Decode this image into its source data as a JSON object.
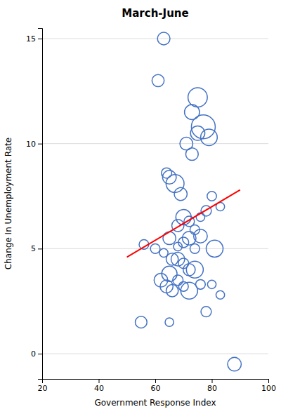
{
  "chart_data": {
    "type": "scatter",
    "title": "March-June",
    "xlabel": "Government Response Index",
    "ylabel": "Change In Unemployment Rate",
    "xlim": [
      20,
      100
    ],
    "ylim": [
      -1.2,
      15.5
    ],
    "xticks": [
      20,
      40,
      60,
      80,
      100
    ],
    "yticks": [
      0,
      5,
      10,
      15
    ],
    "grid": "y",
    "series": [
      {
        "type": "scatter",
        "color": "#4472C4",
        "x": [
          63,
          61,
          75,
          73,
          77,
          79,
          75,
          71,
          73,
          65,
          67,
          64,
          69,
          80,
          83,
          78,
          76,
          70,
          72,
          68,
          74,
          76,
          72,
          65,
          70,
          68,
          74,
          81,
          56,
          60,
          63,
          66,
          68,
          70,
          72,
          74,
          65,
          68,
          62,
          64,
          70,
          66,
          72,
          76,
          80,
          83,
          78,
          55,
          65,
          88
        ],
        "values": [
          15.0,
          13.0,
          12.2,
          11.5,
          10.8,
          10.3,
          10.5,
          10.0,
          9.5,
          8.4,
          8.1,
          8.6,
          7.6,
          7.5,
          7.0,
          6.8,
          6.5,
          6.5,
          6.3,
          6.1,
          5.9,
          5.6,
          5.5,
          5.5,
          5.3,
          5.1,
          5.0,
          5.0,
          5.2,
          5.0,
          4.8,
          4.5,
          4.5,
          4.3,
          4.0,
          4.0,
          3.8,
          3.5,
          3.5,
          3.2,
          3.2,
          3.0,
          3.0,
          3.3,
          3.3,
          2.8,
          2.0,
          1.5,
          1.5,
          -0.5
        ],
        "sizes": [
          160,
          150,
          380,
          230,
          580,
          280,
          210,
          170,
          160,
          190,
          330,
          110,
          170,
          90,
          75,
          110,
          75,
          240,
          110,
          150,
          95,
          190,
          190,
          170,
          110,
          75,
          95,
          290,
          95,
          95,
          75,
          150,
          190,
          110,
          150,
          290,
          240,
          110,
          190,
          170,
          95,
          150,
          290,
          95,
          75,
          75,
          110,
          140,
          75,
          190
        ]
      },
      {
        "type": "line",
        "color": "red",
        "x": [
          50,
          90
        ],
        "values": [
          4.6,
          7.8
        ]
      }
    ]
  }
}
